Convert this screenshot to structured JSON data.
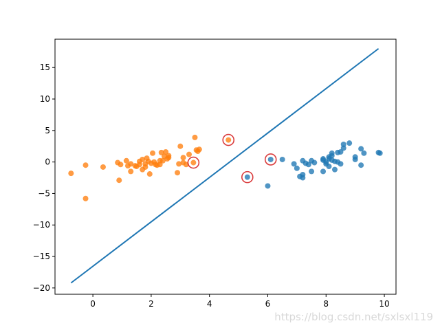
{
  "chart_data": {
    "type": "scatter",
    "title": "",
    "xlabel": "",
    "ylabel": "",
    "xlim": [
      -1.3,
      10.4
    ],
    "ylim": [
      -21,
      19.5
    ],
    "xticks": [
      0,
      2,
      4,
      6,
      8,
      10
    ],
    "yticks": [
      -20,
      -15,
      -10,
      -5,
      0,
      5,
      10,
      15
    ],
    "xtick_labels": [
      "0",
      "2",
      "4",
      "6",
      "8",
      "10"
    ],
    "ytick_labels": [
      "−20",
      "−15",
      "−10",
      "−5",
      "0",
      "5",
      "10",
      "15"
    ],
    "grid": false,
    "series": [
      {
        "color": "#1f77b4",
        "points": [
          [
            6.1,
            0.4
          ],
          [
            6.0,
            -3.8
          ],
          [
            5.3,
            -2.4
          ],
          [
            6.5,
            0.4
          ],
          [
            6.9,
            -0.3
          ],
          [
            7.0,
            -1.0
          ],
          [
            7.1,
            -2.3
          ],
          [
            7.2,
            -2.0
          ],
          [
            7.2,
            0.2
          ],
          [
            7.3,
            -0.2
          ],
          [
            7.2,
            -2.5
          ],
          [
            7.4,
            -0.4
          ],
          [
            7.5,
            -1.5
          ],
          [
            7.5,
            0.2
          ],
          [
            7.6,
            -0.1
          ],
          [
            7.9,
            0.3
          ],
          [
            7.9,
            0.5
          ],
          [
            7.9,
            -1.5
          ],
          [
            8.0,
            -0.3
          ],
          [
            8.0,
            0.0
          ],
          [
            8.1,
            0.8
          ],
          [
            8.1,
            0.5
          ],
          [
            8.1,
            -0.7
          ],
          [
            8.2,
            1.0
          ],
          [
            8.2,
            1.4
          ],
          [
            8.2,
            0.3
          ],
          [
            8.3,
            0.1
          ],
          [
            8.3,
            -1.2
          ],
          [
            8.4,
            0.0
          ],
          [
            8.4,
            1.5
          ],
          [
            8.5,
            -0.3
          ],
          [
            8.5,
            1.6
          ],
          [
            8.6,
            2.8
          ],
          [
            8.6,
            2.2
          ],
          [
            8.8,
            3.0
          ],
          [
            9.0,
            0.8
          ],
          [
            9.0,
            0.4
          ],
          [
            9.2,
            -0.5
          ],
          [
            9.2,
            2.1
          ],
          [
            9.3,
            1.4
          ],
          [
            9.8,
            1.5
          ],
          [
            9.85,
            1.4
          ]
        ]
      },
      {
        "color": "#ff7f0e",
        "points": [
          [
            -0.75,
            -1.8
          ],
          [
            -0.25,
            -0.5
          ],
          [
            -0.25,
            -5.8
          ],
          [
            0.35,
            -0.8
          ],
          [
            0.85,
            -0.1
          ],
          [
            0.9,
            -2.9
          ],
          [
            0.95,
            -0.4
          ],
          [
            1.15,
            0.2
          ],
          [
            1.2,
            -0.6
          ],
          [
            1.3,
            -1.5
          ],
          [
            1.3,
            -0.3
          ],
          [
            1.45,
            -0.6
          ],
          [
            1.5,
            -0.7
          ],
          [
            1.6,
            -0.4
          ],
          [
            1.6,
            0.1
          ],
          [
            1.7,
            -1.2
          ],
          [
            1.7,
            0.4
          ],
          [
            1.8,
            -0.8
          ],
          [
            1.8,
            -0.3
          ],
          [
            1.85,
            0.6
          ],
          [
            1.9,
            0.1
          ],
          [
            1.95,
            -1.9
          ],
          [
            2.0,
            -0.2
          ],
          [
            2.05,
            1.4
          ],
          [
            2.1,
            0.0
          ],
          [
            2.15,
            -0.4
          ],
          [
            2.2,
            -0.5
          ],
          [
            2.3,
            -0.4
          ],
          [
            2.3,
            0.2
          ],
          [
            2.35,
            1.5
          ],
          [
            2.4,
            0.2
          ],
          [
            2.45,
            0.9
          ],
          [
            2.5,
            1.6
          ],
          [
            2.55,
            0.5
          ],
          [
            2.6,
            0.7
          ],
          [
            2.6,
            1.0
          ],
          [
            2.9,
            -1.7
          ],
          [
            2.95,
            -0.3
          ],
          [
            3.0,
            2.5
          ],
          [
            3.1,
            0.7
          ],
          [
            3.1,
            -0.1
          ],
          [
            3.2,
            -0.4
          ],
          [
            3.3,
            1.2
          ],
          [
            3.45,
            -0.1
          ],
          [
            3.5,
            3.9
          ],
          [
            3.55,
            1.9
          ],
          [
            3.65,
            2.0
          ],
          [
            3.6,
            1.7
          ],
          [
            4.65,
            3.5
          ]
        ]
      }
    ],
    "line": {
      "color": "#1f77b4",
      "points": [
        [
          -0.75,
          -19.2
        ],
        [
          9.8,
          18.0
        ]
      ]
    },
    "highlight_circles": {
      "color": "#d62728",
      "points": [
        [
          3.45,
          -0.1
        ],
        [
          4.65,
          3.5
        ],
        [
          5.3,
          -2.4
        ],
        [
          6.1,
          0.4
        ]
      ]
    }
  },
  "watermark": "https://blog.csdn.net/sxlsxl119"
}
